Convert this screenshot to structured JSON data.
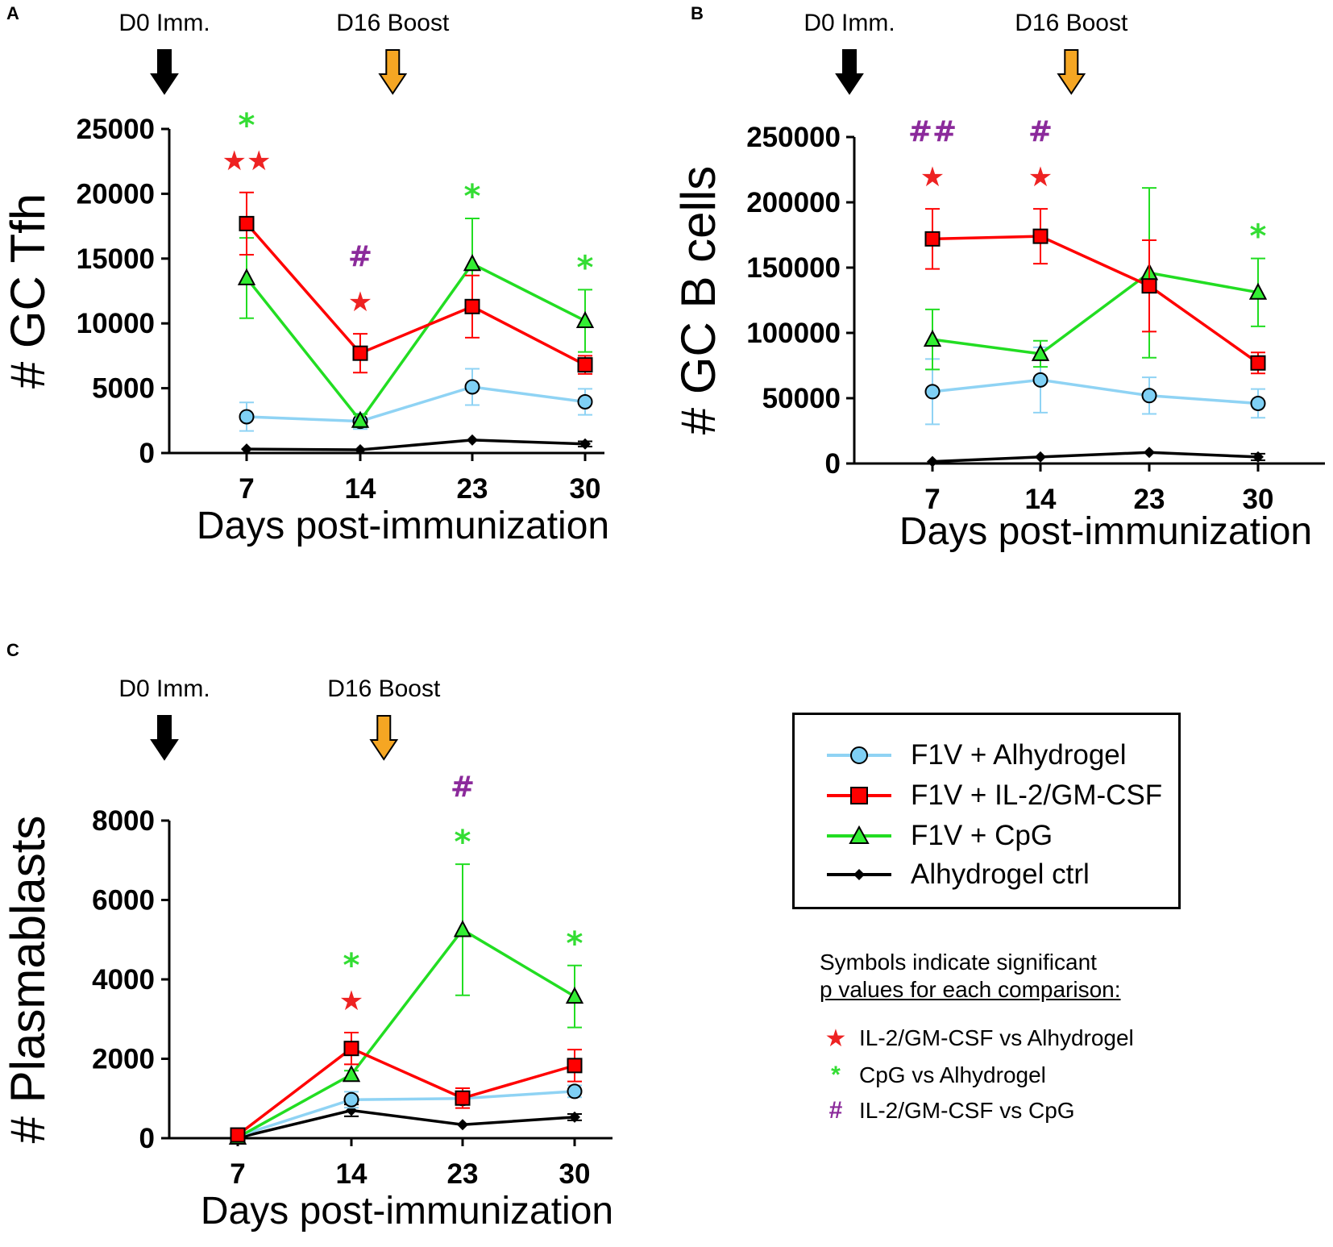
{
  "chart_data": [
    {
      "type": "line",
      "panel": "A",
      "ylabel": "# GC Tfh",
      "xlabel": "Days post-immunization",
      "categories": [
        "7",
        "14",
        "23",
        "30"
      ],
      "ylim": [
        0,
        25000
      ],
      "yticks": [
        0,
        5000,
        10000,
        15000,
        20000,
        25000
      ],
      "events": [
        {
          "label": "D0 Imm.",
          "at": 0,
          "color": "#000000"
        },
        {
          "label": "D16 Boost",
          "at": 16,
          "color": "#f5a623"
        }
      ],
      "series": [
        {
          "key": "alhydrogel",
          "name": "F1V + Alhydrogel",
          "values": [
            2800,
            2450,
            5100,
            3950
          ],
          "err": [
            1100,
            600,
            1400,
            1000
          ]
        },
        {
          "key": "il2",
          "name": "F1V + IL-2/GM-CSF",
          "values": [
            17700,
            7700,
            11300,
            6800
          ],
          "err": [
            2400,
            1500,
            2400,
            700
          ]
        },
        {
          "key": "cpg",
          "name": "F1V + CpG",
          "values": [
            13500,
            2500,
            14600,
            10200
          ],
          "err": [
            3100,
            500,
            3500,
            2400
          ]
        },
        {
          "key": "ctrl",
          "name": "Alhydrogel ctrl",
          "values": [
            300,
            250,
            1000,
            700
          ],
          "err": [
            0,
            0,
            0,
            200
          ]
        }
      ],
      "annotations": [
        {
          "at": 0,
          "stack": [
            {
              "sym": "★★",
              "kind": "star"
            },
            {
              "sym": "*",
              "kind": "asterisk"
            }
          ]
        },
        {
          "at": 1,
          "stack": [
            {
              "sym": "★",
              "kind": "star"
            },
            {
              "sym": "#",
              "kind": "hash"
            }
          ]
        },
        {
          "at": 2,
          "stack": [
            {
              "sym": "*",
              "kind": "asterisk"
            }
          ]
        },
        {
          "at": 3,
          "stack": [
            {
              "sym": "*",
              "kind": "asterisk"
            }
          ]
        }
      ]
    },
    {
      "type": "line",
      "panel": "B",
      "ylabel": "# GC B cells",
      "xlabel": "Days post-immunization",
      "categories": [
        "7",
        "14",
        "23",
        "30"
      ],
      "ylim": [
        0,
        250000
      ],
      "yticks": [
        0,
        50000,
        100000,
        150000,
        200000,
        250000
      ],
      "events": [
        {
          "label": "D0 Imm.",
          "at": 0,
          "color": "#000000"
        },
        {
          "label": "D16 Boost",
          "at": 16,
          "color": "#f5a623"
        }
      ],
      "series": [
        {
          "key": "alhydrogel",
          "name": "F1V + Alhydrogel",
          "values": [
            55000,
            64000,
            52000,
            46000
          ],
          "err": [
            25000,
            25000,
            14000,
            11000
          ]
        },
        {
          "key": "il2",
          "name": "F1V + IL-2/GM-CSF",
          "values": [
            172000,
            174000,
            136000,
            77000
          ],
          "err": [
            23000,
            21000,
            35000,
            8000
          ]
        },
        {
          "key": "cpg",
          "name": "F1V + CpG",
          "values": [
            95000,
            84000,
            146000,
            131000
          ],
          "err": [
            23000,
            10000,
            65000,
            26000
          ]
        },
        {
          "key": "ctrl",
          "name": "Alhydrogel ctrl",
          "values": [
            1500,
            5000,
            8500,
            5000
          ],
          "err": [
            0,
            0,
            0,
            2500
          ]
        }
      ],
      "annotations": [
        {
          "at": 0,
          "stack": [
            {
              "sym": "★",
              "kind": "star"
            },
            {
              "sym": "##",
              "kind": "hash"
            }
          ]
        },
        {
          "at": 1,
          "stack": [
            {
              "sym": "★",
              "kind": "star"
            },
            {
              "sym": "#",
              "kind": "hash"
            }
          ]
        },
        {
          "at": 3,
          "stack": [
            {
              "sym": "*",
              "kind": "asterisk"
            }
          ]
        }
      ]
    },
    {
      "type": "line",
      "panel": "C",
      "ylabel": "# Plasmablasts",
      "xlabel": "Days post-immunization",
      "categories": [
        "7",
        "14",
        "23",
        "30"
      ],
      "ylim": [
        0,
        8000
      ],
      "yticks": [
        0,
        2000,
        4000,
        6000,
        8000
      ],
      "events": [
        {
          "label": "D0 Imm.",
          "at": 0,
          "color": "#000000"
        },
        {
          "label": "D16 Boost",
          "at": 16,
          "color": "#f5a623"
        }
      ],
      "series": [
        {
          "key": "alhydrogel",
          "name": "F1V + Alhydrogel",
          "values": [
            50,
            970,
            1000,
            1180
          ],
          "err": [
            0,
            200,
            100,
            150
          ]
        },
        {
          "key": "il2",
          "name": "F1V + IL-2/GM-CSF",
          "values": [
            80,
            2260,
            1010,
            1830
          ],
          "err": [
            0,
            400,
            250,
            400
          ]
        },
        {
          "key": "cpg",
          "name": "F1V + CpG",
          "values": [
            20,
            1600,
            5250,
            3570
          ],
          "err": [
            0,
            100,
            1650,
            780
          ]
        },
        {
          "key": "ctrl",
          "name": "Alhydrogel ctrl",
          "values": [
            10,
            700,
            340,
            530
          ],
          "err": [
            0,
            150,
            0,
            80
          ]
        }
      ],
      "annotations": [
        {
          "at": 1,
          "stack": [
            {
              "sym": "★",
              "kind": "star"
            },
            {
              "sym": "*",
              "kind": "asterisk"
            }
          ]
        },
        {
          "at": 2,
          "stack": [
            {
              "sym": "*",
              "kind": "asterisk"
            },
            {
              "sym": "#",
              "kind": "hash"
            }
          ]
        },
        {
          "at": 3,
          "stack": [
            {
              "sym": "*",
              "kind": "asterisk"
            }
          ]
        }
      ]
    }
  ],
  "colors": {
    "alhydrogel_line": "#8fd3f4",
    "alhydrogel_fill": "#7fd0f5",
    "il2": "#ff0000",
    "cpg": "#22dd22",
    "cpg_fill": "#33ee33",
    "ctrl": "#000000",
    "star": "#ee2222",
    "asterisk": "#33dd33",
    "hash": "#8b2a9b",
    "boost_arrow": "#f5a623"
  },
  "legend": {
    "items": [
      {
        "key": "alhydrogel",
        "label": "F1V + Alhydrogel"
      },
      {
        "key": "il2",
        "label": "F1V + IL-2/GM-CSF"
      },
      {
        "key": "cpg",
        "label": "F1V + CpG"
      },
      {
        "key": "ctrl",
        "label": "Alhydrogel ctrl"
      }
    ]
  },
  "note": {
    "line1": "Symbols indicate significant",
    "line2": "p values for each comparison:"
  },
  "key": [
    {
      "sym": "★",
      "kind": "star",
      "label": "IL-2/GM-CSF vs Alhydrogel"
    },
    {
      "sym": "*",
      "kind": "asterisk",
      "label": "CpG vs Alhydrogel"
    },
    {
      "sym": "#",
      "kind": "hash",
      "label": "IL-2/GM-CSF vs CpG"
    }
  ]
}
